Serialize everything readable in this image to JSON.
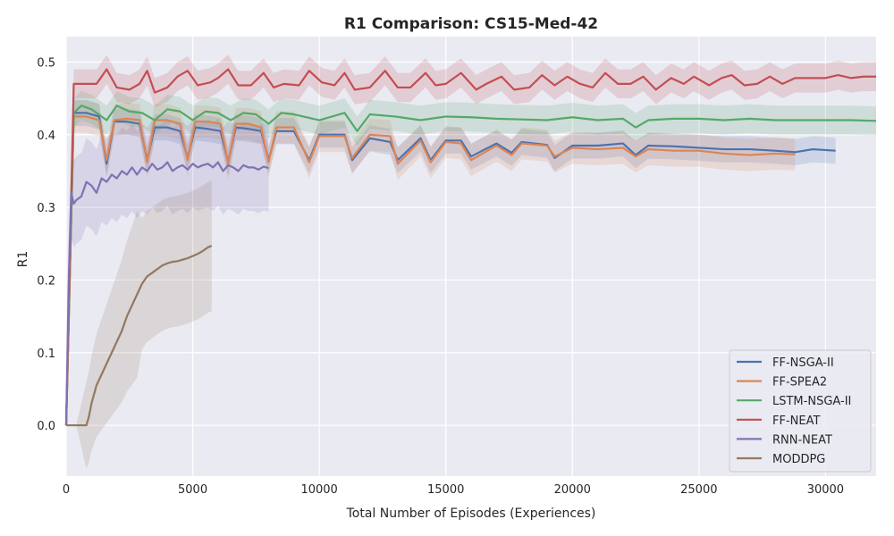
{
  "chart_data": {
    "type": "line",
    "title": "R1 Comparison: CS15-Med-42",
    "xlabel": "Total Number of Episodes (Experiences)",
    "ylabel": "R1",
    "xlim": [
      0,
      32000
    ],
    "ylim": [
      -0.07,
      0.535
    ],
    "xticks": [
      0,
      5000,
      10000,
      15000,
      20000,
      25000,
      30000
    ],
    "yticks": [
      0.0,
      0.1,
      0.2,
      0.3,
      0.4,
      0.5
    ],
    "xtick_labels": [
      "0",
      "5000",
      "10000",
      "15000",
      "20000",
      "25000",
      "30000"
    ],
    "ytick_labels": [
      "0.0",
      "0.1",
      "0.2",
      "0.3",
      "0.4",
      "0.5"
    ],
    "grid": true,
    "legend_position": "lower-right",
    "series": [
      {
        "name": "FF-NSGA-II",
        "color": "#4c72b0",
        "x": [
          0,
          300,
          800,
          1300,
          1600,
          1900,
          2400,
          2900,
          3200,
          3500,
          4000,
          4500,
          4800,
          5100,
          5600,
          6100,
          6400,
          6700,
          7200,
          7700,
          8000,
          8300,
          9000,
          9600,
          10000,
          11000,
          11300,
          12000,
          12800,
          13100,
          14000,
          14400,
          15000,
          15600,
          16000,
          17000,
          17600,
          18000,
          19000,
          19300,
          20000,
          21000,
          22000,
          22500,
          23000,
          24000,
          25000,
          26000,
          27000,
          28000,
          28800,
          29500,
          30400
        ],
        "y": [
          0.0,
          0.43,
          0.43,
          0.425,
          0.36,
          0.418,
          0.418,
          0.415,
          0.365,
          0.41,
          0.41,
          0.405,
          0.368,
          0.41,
          0.408,
          0.405,
          0.362,
          0.41,
          0.408,
          0.405,
          0.365,
          0.405,
          0.405,
          0.365,
          0.4,
          0.4,
          0.365,
          0.395,
          0.39,
          0.365,
          0.395,
          0.365,
          0.392,
          0.392,
          0.37,
          0.388,
          0.375,
          0.39,
          0.386,
          0.368,
          0.385,
          0.385,
          0.388,
          0.372,
          0.385,
          0.384,
          0.382,
          0.38,
          0.38,
          0.378,
          0.376,
          0.38,
          0.378
        ]
      },
      {
        "name": "FF-SPEA2",
        "color": "#dd8452",
        "x": [
          0,
          300,
          800,
          1300,
          1600,
          1900,
          2400,
          2900,
          3200,
          3500,
          4000,
          4500,
          4800,
          5100,
          5600,
          6100,
          6400,
          6700,
          7200,
          7700,
          8000,
          8300,
          9000,
          9600,
          10000,
          11000,
          11300,
          12000,
          12800,
          13100,
          14000,
          14400,
          15000,
          15600,
          16000,
          17000,
          17600,
          18000,
          19000,
          19300,
          20000,
          21000,
          22000,
          22500,
          23000,
          24000,
          25000,
          26000,
          27000,
          28000,
          28800
        ],
        "y": [
          0.0,
          0.425,
          0.425,
          0.42,
          0.365,
          0.42,
          0.422,
          0.42,
          0.362,
          0.42,
          0.42,
          0.415,
          0.365,
          0.418,
          0.418,
          0.415,
          0.36,
          0.415,
          0.415,
          0.41,
          0.362,
          0.41,
          0.41,
          0.362,
          0.398,
          0.398,
          0.368,
          0.4,
          0.398,
          0.36,
          0.392,
          0.362,
          0.39,
          0.388,
          0.365,
          0.385,
          0.372,
          0.388,
          0.385,
          0.37,
          0.382,
          0.38,
          0.382,
          0.37,
          0.38,
          0.378,
          0.378,
          0.374,
          0.372,
          0.374,
          0.373
        ]
      },
      {
        "name": "LSTM-NSGA-II",
        "color": "#55a868",
        "x": [
          0,
          300,
          600,
          1000,
          1600,
          2000,
          2500,
          3000,
          3500,
          4000,
          4500,
          5000,
          5500,
          6000,
          6500,
          7000,
          7500,
          8000,
          8500,
          9000,
          10000,
          11000,
          11500,
          12000,
          13000,
          14000,
          15000,
          16000,
          17000,
          18000,
          19000,
          20000,
          21000,
          22000,
          22500,
          23000,
          24000,
          25000,
          26000,
          27000,
          28000,
          29000,
          30000,
          31000,
          32000
        ],
        "y": [
          0.0,
          0.43,
          0.44,
          0.435,
          0.42,
          0.44,
          0.432,
          0.43,
          0.42,
          0.435,
          0.432,
          0.42,
          0.432,
          0.43,
          0.42,
          0.43,
          0.428,
          0.415,
          0.43,
          0.428,
          0.42,
          0.43,
          0.405,
          0.428,
          0.425,
          0.42,
          0.425,
          0.424,
          0.422,
          0.421,
          0.42,
          0.424,
          0.42,
          0.422,
          0.41,
          0.42,
          0.422,
          0.422,
          0.42,
          0.422,
          0.42,
          0.42,
          0.42,
          0.42,
          0.419
        ]
      },
      {
        "name": "FF-NEAT",
        "color": "#c44e52",
        "x": [
          0,
          300,
          700,
          1200,
          1600,
          2000,
          2500,
          2900,
          3200,
          3500,
          4000,
          4400,
          4800,
          5200,
          5700,
          6000,
          6400,
          6800,
          7300,
          7800,
          8200,
          8600,
          9200,
          9600,
          10100,
          10600,
          11000,
          11400,
          12000,
          12600,
          13100,
          13600,
          14200,
          14600,
          15000,
          15600,
          16200,
          16600,
          17200,
          17700,
          18300,
          18800,
          19300,
          19800,
          20300,
          20800,
          21300,
          21800,
          22300,
          22800,
          23300,
          23900,
          24400,
          24800,
          25400,
          25900,
          26300,
          26800,
          27300,
          27800,
          28300,
          28800,
          29400,
          30000,
          30500,
          31000,
          31500,
          32000
        ],
        "y": [
          0.0,
          0.47,
          0.47,
          0.47,
          0.49,
          0.465,
          0.462,
          0.47,
          0.488,
          0.458,
          0.465,
          0.48,
          0.488,
          0.468,
          0.472,
          0.478,
          0.49,
          0.468,
          0.468,
          0.485,
          0.465,
          0.47,
          0.468,
          0.488,
          0.472,
          0.468,
          0.485,
          0.462,
          0.465,
          0.488,
          0.465,
          0.465,
          0.485,
          0.468,
          0.47,
          0.485,
          0.462,
          0.47,
          0.48,
          0.462,
          0.465,
          0.482,
          0.468,
          0.48,
          0.47,
          0.465,
          0.485,
          0.47,
          0.47,
          0.48,
          0.462,
          0.478,
          0.47,
          0.48,
          0.468,
          0.478,
          0.482,
          0.468,
          0.47,
          0.48,
          0.47,
          0.478,
          0.478,
          0.478,
          0.482,
          0.478,
          0.48,
          0.48
        ]
      },
      {
        "name": "RNN-NEAT",
        "color": "#8172b3",
        "x": [
          0,
          100,
          200,
          300,
          400,
          600,
          800,
          1000,
          1200,
          1400,
          1600,
          1800,
          2000,
          2200,
          2400,
          2600,
          2800,
          3000,
          3200,
          3400,
          3600,
          3800,
          4000,
          4200,
          4400,
          4600,
          4800,
          5000,
          5200,
          5400,
          5600,
          5800,
          6000,
          6200,
          6400,
          6600,
          6800,
          7000,
          7200,
          7400,
          7600,
          7800,
          8000
        ],
        "y": [
          0.0,
          0.2,
          0.32,
          0.305,
          0.31,
          0.315,
          0.335,
          0.33,
          0.32,
          0.34,
          0.335,
          0.345,
          0.34,
          0.35,
          0.345,
          0.355,
          0.345,
          0.355,
          0.35,
          0.36,
          0.352,
          0.355,
          0.362,
          0.35,
          0.355,
          0.358,
          0.352,
          0.36,
          0.355,
          0.358,
          0.36,
          0.355,
          0.362,
          0.35,
          0.358,
          0.355,
          0.35,
          0.358,
          0.355,
          0.355,
          0.352,
          0.356,
          0.354
        ]
      },
      {
        "name": "MODDPG",
        "color": "#937860",
        "x": [
          0,
          400,
          800,
          900,
          1000,
          1200,
          1400,
          1600,
          1800,
          2000,
          2200,
          2400,
          2600,
          2800,
          3000,
          3200,
          3400,
          3600,
          3800,
          4000,
          4200,
          4400,
          4600,
          4800,
          5000,
          5200,
          5400,
          5600,
          5750
        ],
        "y": [
          0.0,
          0.0,
          0.0,
          0.012,
          0.03,
          0.055,
          0.07,
          0.085,
          0.1,
          0.115,
          0.13,
          0.15,
          0.165,
          0.18,
          0.195,
          0.205,
          0.21,
          0.215,
          0.22,
          0.223,
          0.225,
          0.226,
          0.228,
          0.23,
          0.233,
          0.236,
          0.24,
          0.245,
          0.247
        ]
      }
    ]
  }
}
